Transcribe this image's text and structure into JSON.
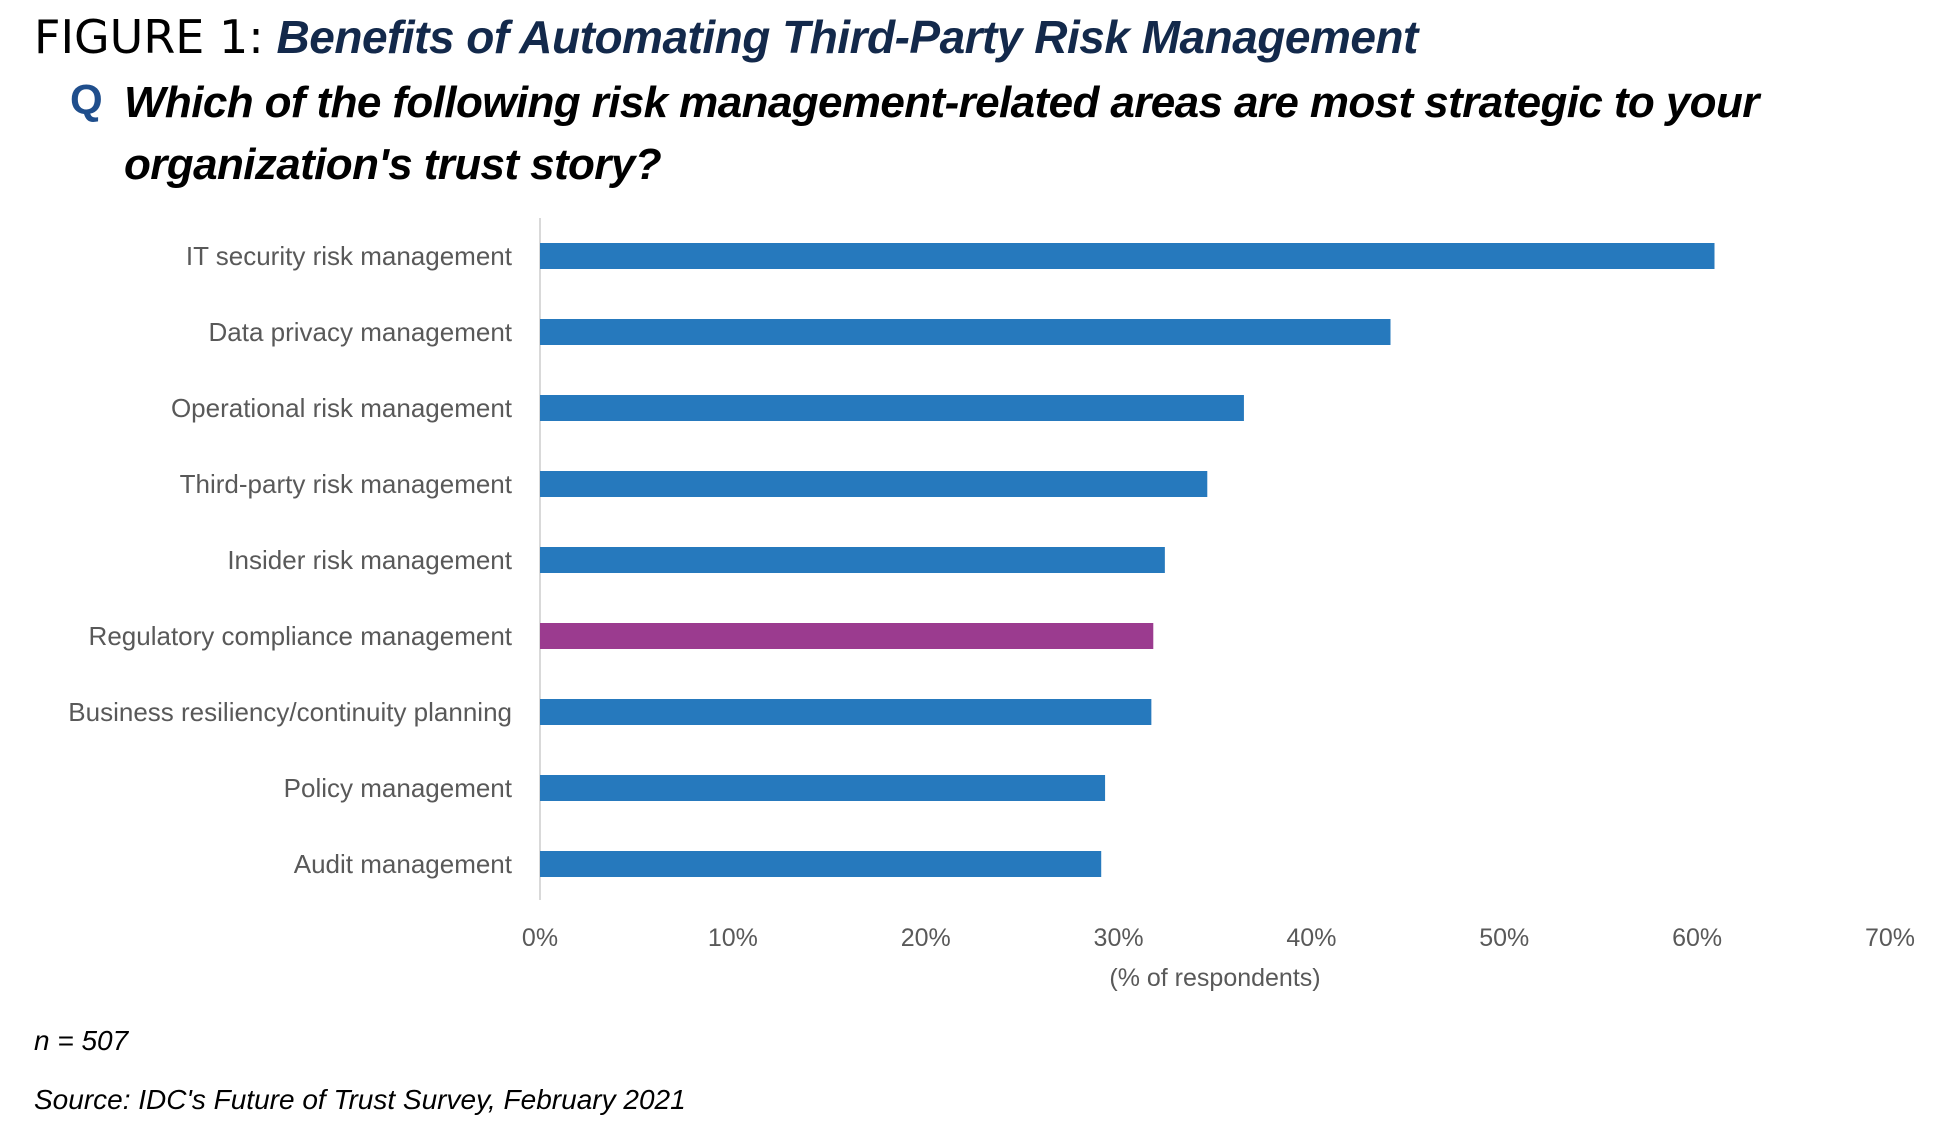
{
  "figure": {
    "prefix": "FIGURE 1:",
    "title": "Benefits of Automating Third-Party Risk Management",
    "question_marker": "Q",
    "question_line1": "Which of the following risk management-related areas are most strategic to your",
    "question_line2": "organization's trust story?"
  },
  "footer": {
    "sample": "n = 507",
    "source": "Source: IDC's Future of Trust Survey, February 2021"
  },
  "colors": {
    "bar": "#2679bd",
    "highlight": "#9b3b8f",
    "axis_text": "#595959",
    "title_navy": "#13294b"
  },
  "chart_data": {
    "type": "bar",
    "orientation": "horizontal",
    "categories": [
      "IT security risk management",
      "Data privacy management",
      "Operational risk management",
      "Third-party risk management",
      "Insider risk management",
      "Regulatory compliance management",
      "Business resiliency/continuity planning",
      "Policy management",
      "Audit management"
    ],
    "values": [
      60.9,
      44.1,
      36.5,
      34.6,
      32.4,
      31.8,
      31.7,
      29.3,
      29.1
    ],
    "highlight_category": "Regulatory compliance management",
    "xlim": [
      0,
      70
    ],
    "xticks": [
      0,
      10,
      20,
      30,
      40,
      50,
      60,
      70
    ],
    "tick_labels": [
      "0%",
      "10%",
      "20%",
      "30%",
      "40%",
      "50%",
      "60%",
      "70%"
    ],
    "xlabel": "(% of respondents)",
    "ylabel": "",
    "grid": false
  }
}
